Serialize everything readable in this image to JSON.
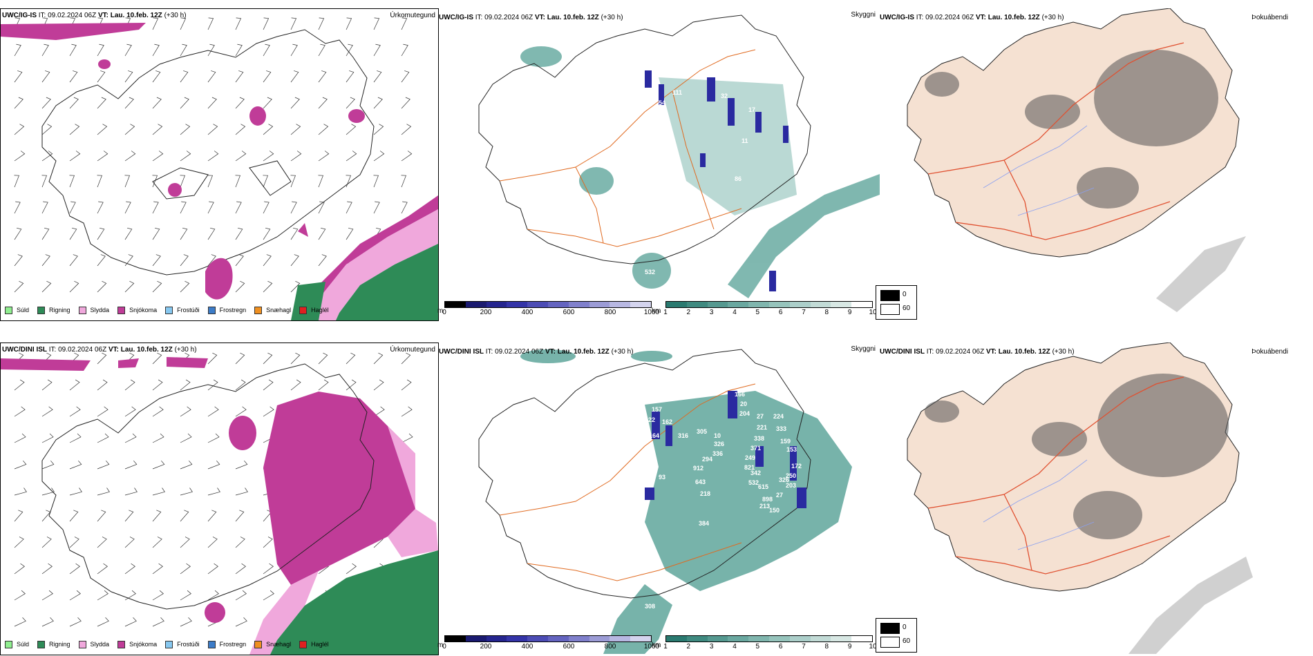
{
  "rows": [
    {
      "precip": {
        "model": "UWC/IG-IS",
        "it_label": "IT:",
        "it_value": "09.02.2024 06Z",
        "vt_label": "VT:",
        "vt_value": "Lau. 10.feb. 12Z",
        "lead": "(+30 h)",
        "type": "Úrkomutegund"
      },
      "cloud": {
        "model": "UWC/IG-IS",
        "it_label": "IT:",
        "it_value": "09.02.2024 06Z",
        "vt_label": "VT:",
        "vt_value": "Lau. 10.feb. 12Z",
        "lead": "(+30 h)",
        "type": "Skyggni"
      },
      "fog": {
        "model": "UWC/IG-IS",
        "it_label": "IT:",
        "it_value": "09.02.2024 06Z",
        "vt_label": "VT:",
        "vt_value": "Lau. 10.feb. 12Z",
        "lead": "(+30 h)",
        "type": "Þokuábendi"
      },
      "cloud_base_labels": [
        "51",
        "111",
        "54",
        "32",
        "17",
        "11",
        "86",
        "47",
        "532"
      ]
    },
    {
      "precip": {
        "model": "UWC/DINI ISL",
        "it_label": "IT:",
        "it_value": "09.02.2024 06Z",
        "vt_label": "VT:",
        "vt_value": "Lau. 10.feb. 12Z",
        "lead": "(+30 h)",
        "type": "Úrkomutegund"
      },
      "cloud": {
        "model": "UWC/DINI ISL",
        "it_label": "IT:",
        "it_value": "09.02.2024 06Z",
        "vt_label": "VT:",
        "vt_value": "Lau. 10.feb. 12Z",
        "lead": "(+30 h)",
        "type": "Skyggni"
      },
      "fog": {
        "model": "UWC/DINI ISL",
        "it_label": "IT:",
        "it_value": "09.02.2024 06Z",
        "vt_label": "VT:",
        "vt_value": "Lau. 10.feb. 12Z",
        "lead": "(+30 h)",
        "type": "Þokuábendi"
      },
      "cloud_base_labels": [
        "157",
        "122",
        "162",
        "164",
        "316",
        "305",
        "10",
        "326",
        "336",
        "294",
        "912",
        "643",
        "218",
        "884",
        "384",
        "93",
        "166",
        "20",
        "204",
        "27",
        "221",
        "338",
        "371",
        "249",
        "821",
        "342",
        "532",
        "615",
        "898",
        "213",
        "150",
        "27",
        "326",
        "203",
        "250",
        "172",
        "153",
        "159",
        "333",
        "224",
        "308",
        "532",
        "465"
      ]
    }
  ],
  "precip_legend": [
    {
      "label": "Súld",
      "color": "#90ee90"
    },
    {
      "label": "Rigning",
      "color": "#2e8b57"
    },
    {
      "label": "Slydda",
      "color": "#f0a8dc"
    },
    {
      "label": "Snjókoma",
      "color": "#c03c98"
    },
    {
      "label": "Frostúði",
      "color": "#87c8f0"
    },
    {
      "label": "Frostregn",
      "color": "#3c7cc8"
    },
    {
      "label": "Snæhagl",
      "color": "#f09020"
    },
    {
      "label": "Haglél",
      "color": "#e02020"
    }
  ],
  "height_scale": {
    "unit": "m",
    "ticks": [
      "0",
      "200",
      "400",
      "600",
      "800",
      "1000"
    ],
    "colors": [
      "#000000",
      "#1a1a70",
      "#25258f",
      "#3434a8",
      "#4c4cb5",
      "#6464c0",
      "#8080cc",
      "#9c9cd6",
      "#b8b8e2",
      "#d4d4ee"
    ]
  },
  "vis_scale": {
    "unit": "km",
    "ticks": [
      "1",
      "2",
      "3",
      "4",
      "5",
      "6",
      "7",
      "8",
      "9",
      "10"
    ],
    "colors": [
      "#2a7a70",
      "#3f8a80",
      "#559990",
      "#6aa8a0",
      "#80b6ae",
      "#96c4bc",
      "#accfca",
      "#c2dbd6",
      "#d8e8e4",
      "#ffffff"
    ]
  },
  "fog_legend": {
    "levels": [
      "0",
      "60"
    ]
  },
  "colors": {
    "snow": "#c03c98",
    "sleet": "#f0a8dc",
    "rain": "#2e8b57",
    "teal": "#4a9a8e",
    "blue": "#2a2aa0",
    "land": "#f5e1d2",
    "road": "#e06a20",
    "river": "#8aa0f0"
  }
}
